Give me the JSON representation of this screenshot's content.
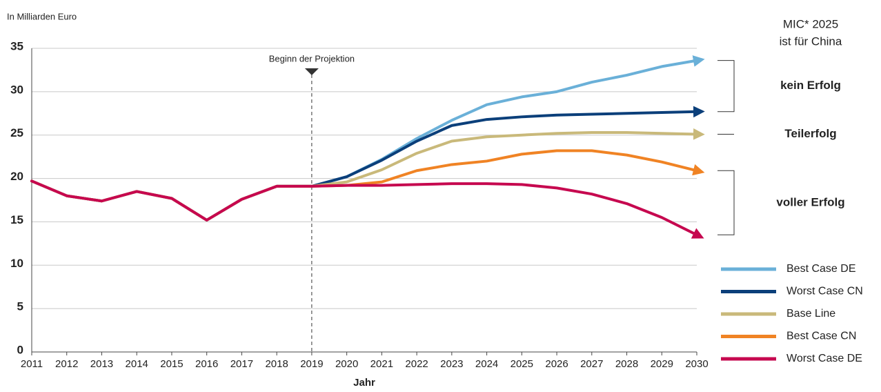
{
  "chart_data": {
    "type": "line",
    "unit_label": "In Milliarden Euro",
    "xlabel": "Jahr",
    "projection_label": "Beginn der Projektion",
    "projection_start": 2019,
    "side_title": [
      "MIC* 2025",
      "ist für China"
    ],
    "outcomes": [
      "kein Erfolg",
      "Teilerfolg",
      "voller Erfolg"
    ],
    "x": [
      2011,
      2012,
      2013,
      2014,
      2015,
      2016,
      2017,
      2018,
      2019,
      2020,
      2021,
      2022,
      2023,
      2024,
      2025,
      2026,
      2027,
      2028,
      2029,
      2030
    ],
    "xlim": [
      2011,
      2030
    ],
    "xticks": [
      2011,
      2012,
      2013,
      2014,
      2015,
      2016,
      2017,
      2018,
      2019,
      2020,
      2021,
      2022,
      2023,
      2024,
      2025,
      2026,
      2027,
      2028,
      2029,
      2030
    ],
    "ylim": [
      0,
      35
    ],
    "yticks": [
      0,
      5,
      10,
      15,
      20,
      25,
      30,
      35
    ],
    "grid": true,
    "legend": "lower right",
    "series": [
      {
        "name": "Best Case DE",
        "color": "#6ab0d8",
        "values": [
          19.7,
          18.0,
          17.4,
          18.5,
          17.7,
          15.2,
          17.6,
          19.1,
          19.1,
          20.2,
          22.2,
          24.6,
          26.7,
          28.5,
          29.4,
          30.0,
          31.1,
          31.9,
          32.9,
          33.6
        ]
      },
      {
        "name": "Worst Case CN",
        "color": "#0b3f7a",
        "values": [
          19.7,
          18.0,
          17.4,
          18.5,
          17.7,
          15.2,
          17.6,
          19.1,
          19.1,
          20.2,
          22.1,
          24.3,
          26.1,
          26.8,
          27.1,
          27.3,
          27.4,
          27.5,
          27.6,
          27.7
        ]
      },
      {
        "name": "Base Line",
        "color": "#c9b97a",
        "values": [
          19.7,
          18.0,
          17.4,
          18.5,
          17.7,
          15.2,
          17.6,
          19.1,
          19.1,
          19.6,
          21.0,
          22.9,
          24.3,
          24.8,
          25.0,
          25.2,
          25.3,
          25.3,
          25.2,
          25.1
        ]
      },
      {
        "name": "Best Case CN",
        "color": "#f08324",
        "values": [
          19.7,
          18.0,
          17.4,
          18.5,
          17.7,
          15.2,
          17.6,
          19.1,
          19.1,
          19.2,
          19.6,
          20.9,
          21.6,
          22.0,
          22.8,
          23.2,
          23.2,
          22.7,
          21.9,
          20.9
        ]
      },
      {
        "name": "Worst Case DE",
        "color": "#c6084f",
        "values": [
          19.7,
          18.0,
          17.4,
          18.5,
          17.7,
          15.2,
          17.6,
          19.1,
          19.1,
          19.2,
          19.2,
          19.3,
          19.4,
          19.4,
          19.3,
          18.9,
          18.2,
          17.1,
          15.5,
          13.5
        ]
      }
    ]
  }
}
